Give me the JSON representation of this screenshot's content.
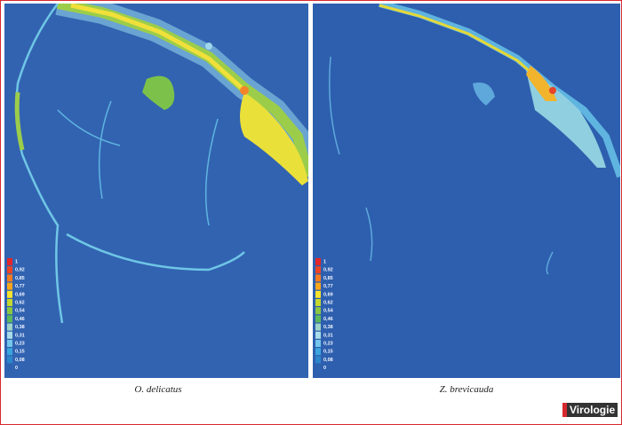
{
  "panels": [
    {
      "caption": "O. delicatus",
      "legend": [
        {
          "label": "1",
          "color": "#e3262b"
        },
        {
          "label": "0,92",
          "color": "#ee4424"
        },
        {
          "label": "0,85",
          "color": "#f47b20"
        },
        {
          "label": "0,77",
          "color": "#f9a61a"
        },
        {
          "label": "0,69",
          "color": "#f7e22c"
        },
        {
          "label": "0,62",
          "color": "#c4d82e"
        },
        {
          "label": "0,54",
          "color": "#8cc640"
        },
        {
          "label": "0,46",
          "color": "#5cb85a"
        },
        {
          "label": "0,38",
          "color": "#9fd3c7"
        },
        {
          "label": "0,31",
          "color": "#a9dbe8"
        },
        {
          "label": "0,23",
          "color": "#74c6ea"
        },
        {
          "label": "0,15",
          "color": "#3aa6dd"
        },
        {
          "label": "0,08",
          "color": "#2c86cc"
        },
        {
          "label": "0",
          "color": "#2d62b0"
        }
      ]
    },
    {
      "caption": "Z. brevicauda",
      "legend": [
        {
          "label": "1",
          "color": "#e3262b"
        },
        {
          "label": "0,92",
          "color": "#ee4424"
        },
        {
          "label": "0,85",
          "color": "#f47b20"
        },
        {
          "label": "0,77",
          "color": "#f9a61a"
        },
        {
          "label": "0,69",
          "color": "#f7e22c"
        },
        {
          "label": "0,62",
          "color": "#c4d82e"
        },
        {
          "label": "0,54",
          "color": "#8cc640"
        },
        {
          "label": "0,46",
          "color": "#5cb85a"
        },
        {
          "label": "0,38",
          "color": "#9fd3c7"
        },
        {
          "label": "0,31",
          "color": "#a9dbe8"
        },
        {
          "label": "0,23",
          "color": "#74c6ea"
        },
        {
          "label": "0,15",
          "color": "#3aa6dd"
        },
        {
          "label": "0,08",
          "color": "#2c86cc"
        },
        {
          "label": "0",
          "color": "#2d62b0"
        }
      ]
    }
  ],
  "logo": "Virologie"
}
